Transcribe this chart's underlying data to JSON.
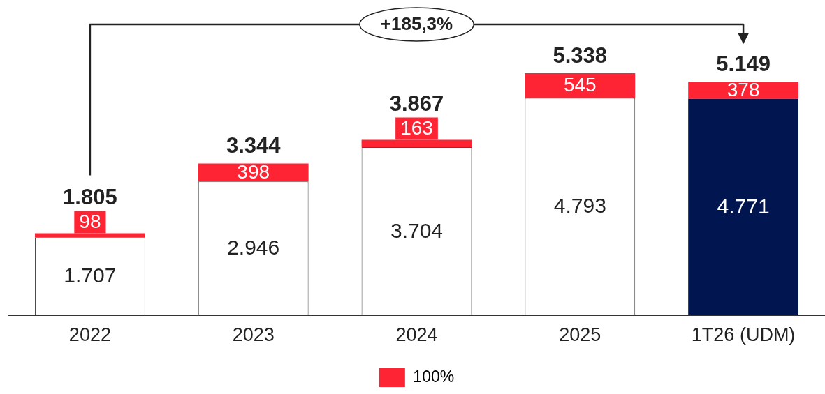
{
  "chart_data": {
    "type": "bar",
    "stacked": true,
    "categories": [
      "2022",
      "2023",
      "2024",
      "2025",
      "1T26 (UDM)"
    ],
    "series": [
      {
        "colors": [
          "#ffffff",
          "#ffffff",
          "#ffffff",
          "#ffffff",
          "#011650"
        ],
        "values": [
          1707,
          2946,
          3704,
          4793,
          4771
        ],
        "value_labels": [
          "1.707",
          "2.946",
          "3.704",
          "4.793",
          "4.771"
        ]
      },
      {
        "name": "100%",
        "color": "#ff2433",
        "values": [
          98,
          398,
          163,
          545,
          378
        ],
        "value_labels": [
          "98",
          "398",
          "163",
          "545",
          "378"
        ]
      }
    ],
    "totals": [
      "1.805",
      "3.344",
      "3.867",
      "5.338",
      "5.149"
    ],
    "annotations": [
      "+185,3%"
    ],
    "legend": "bottom",
    "tick_labels": "x"
  }
}
